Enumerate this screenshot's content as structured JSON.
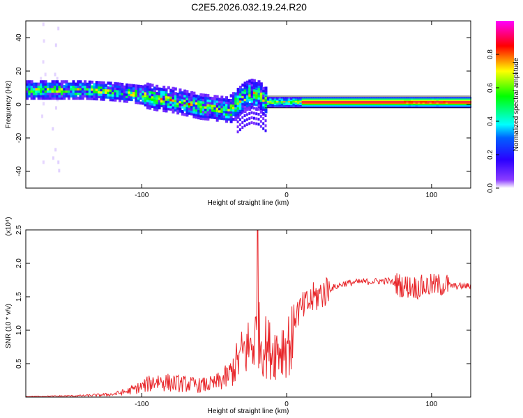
{
  "title": "C2E5.2026.032.19.24.R20",
  "chart_data": [
    {
      "type": "heatmap",
      "name": "spectrogram",
      "xlabel": "Height of straight line (km)",
      "ylabel": "Frequency (Hz)",
      "xlim": [
        -180,
        127
      ],
      "ylim": [
        -50,
        50
      ],
      "xticks": [
        -100,
        0,
        100
      ],
      "yticks": [
        -40,
        -20,
        0,
        20,
        40
      ],
      "colorbar": {
        "label": "Normalized spectral amplitude",
        "range": [
          0,
          1
        ],
        "ticks": [
          "0.0",
          "0.2",
          "0.4",
          "0.6",
          "0.8"
        ],
        "tick_values": [
          0.0,
          0.2,
          0.4,
          0.6,
          0.8
        ],
        "colormap": [
          "#ffffff",
          "#6600ff",
          "#0000ff",
          "#00ffff",
          "#00ff00",
          "#ffff00",
          "#ff0000",
          "#ff00ff"
        ]
      },
      "ridge": {
        "x": [
          -180,
          -160,
          -140,
          -120,
          -100,
          -90,
          -80,
          -70,
          -60,
          -50,
          -40,
          -30,
          -25,
          -20,
          -15,
          -10,
          0,
          20,
          40,
          60,
          80,
          100,
          127
        ],
        "y": [
          9,
          9,
          9,
          8,
          6,
          4,
          3,
          1,
          -1,
          -2,
          -3,
          5,
          7,
          6,
          2,
          1,
          1,
          1,
          1,
          1,
          1,
          1,
          1
        ]
      },
      "band_center_hz": 1.5
    },
    {
      "type": "line",
      "name": "snr",
      "xlabel": "Height of straight line (km)",
      "ylabel": "SNR (10 * v/v)",
      "multiplier_label": "(x10⁴)",
      "xlim": [
        -180,
        127
      ],
      "ylim": [
        0,
        2.5
      ],
      "xticks": [
        -100,
        0,
        100
      ],
      "yticks": [
        0.5,
        1.0,
        1.5,
        2.0,
        2.5
      ],
      "color": "#e8262a",
      "envelope": {
        "x": [
          -180,
          -140,
          -120,
          -110,
          -100,
          -90,
          -80,
          -70,
          -60,
          -50,
          -40,
          -35,
          -30,
          -25,
          -20,
          -15,
          -10,
          -5,
          0,
          10,
          20,
          30,
          40,
          50,
          60,
          70,
          80,
          90,
          100,
          110,
          115,
          127
        ],
        "y": [
          0.01,
          0.03,
          0.06,
          0.12,
          0.22,
          0.35,
          0.3,
          0.28,
          0.25,
          0.28,
          0.45,
          0.7,
          0.95,
          1.1,
          1.3,
          1.1,
          1.0,
          1.05,
          1.15,
          1.3,
          1.5,
          1.62,
          1.7,
          1.72,
          1.73,
          1.74,
          1.66,
          1.64,
          1.67,
          1.68,
          1.66,
          1.66
        ]
      },
      "peak": {
        "x": -20,
        "y": 2.6
      }
    }
  ]
}
